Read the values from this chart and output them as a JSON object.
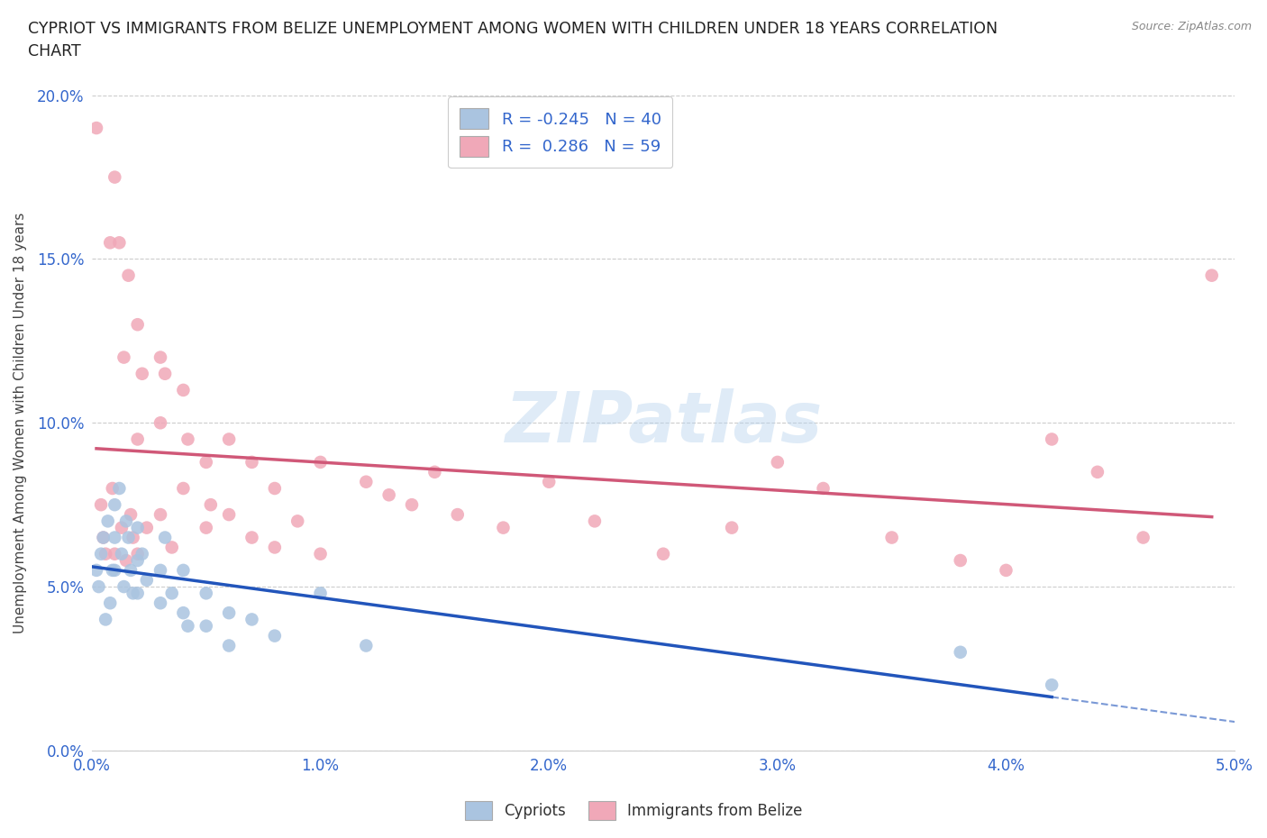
{
  "title": "CYPRIOT VS IMMIGRANTS FROM BELIZE UNEMPLOYMENT AMONG WOMEN WITH CHILDREN UNDER 18 YEARS CORRELATION\nCHART",
  "source": "Source: ZipAtlas.com",
  "ylabel": "Unemployment Among Women with Children Under 18 years",
  "xlim": [
    0.0,
    0.05
  ],
  "ylim": [
    0.0,
    0.2
  ],
  "xticks": [
    0.0,
    0.01,
    0.02,
    0.03,
    0.04,
    0.05
  ],
  "yticks": [
    0.0,
    0.05,
    0.1,
    0.15,
    0.2
  ],
  "xtick_labels": [
    "0.0%",
    "1.0%",
    "2.0%",
    "3.0%",
    "4.0%",
    "5.0%"
  ],
  "ytick_labels": [
    "0.0%",
    "5.0%",
    "10.0%",
    "15.0%",
    "20.0%"
  ],
  "background_color": "#ffffff",
  "grid_color": "#cccccc",
  "watermark": "ZIPatlas",
  "cypriot_color": "#aac4e0",
  "belize_color": "#f0a8b8",
  "cypriot_line_color": "#2255bb",
  "belize_line_color": "#d05878",
  "cypriot_R": -0.245,
  "cypriot_N": 40,
  "belize_R": 0.286,
  "belize_N": 59,
  "legend_label_cypriot": "Cypriots",
  "legend_label_belize": "Immigrants from Belize",
  "cypriot_x": [
    0.0002,
    0.0003,
    0.0004,
    0.0005,
    0.0006,
    0.0007,
    0.0008,
    0.0009,
    0.001,
    0.001,
    0.001,
    0.0012,
    0.0013,
    0.0014,
    0.0015,
    0.0016,
    0.0017,
    0.0018,
    0.002,
    0.002,
    0.002,
    0.0022,
    0.0024,
    0.003,
    0.003,
    0.0032,
    0.0035,
    0.004,
    0.004,
    0.0042,
    0.005,
    0.005,
    0.006,
    0.006,
    0.007,
    0.008,
    0.01,
    0.012,
    0.038,
    0.042
  ],
  "cypriot_y": [
    0.055,
    0.05,
    0.06,
    0.065,
    0.04,
    0.07,
    0.045,
    0.055,
    0.075,
    0.065,
    0.055,
    0.08,
    0.06,
    0.05,
    0.07,
    0.065,
    0.055,
    0.048,
    0.068,
    0.058,
    0.048,
    0.06,
    0.052,
    0.055,
    0.045,
    0.065,
    0.048,
    0.055,
    0.042,
    0.038,
    0.048,
    0.038,
    0.042,
    0.032,
    0.04,
    0.035,
    0.048,
    0.032,
    0.03,
    0.02
  ],
  "belize_x": [
    0.0002,
    0.0004,
    0.0005,
    0.0006,
    0.0008,
    0.0009,
    0.001,
    0.001,
    0.0012,
    0.0013,
    0.0014,
    0.0015,
    0.0016,
    0.0017,
    0.0018,
    0.002,
    0.002,
    0.002,
    0.0022,
    0.0024,
    0.003,
    0.003,
    0.003,
    0.0032,
    0.0035,
    0.004,
    0.004,
    0.0042,
    0.005,
    0.005,
    0.0052,
    0.006,
    0.006,
    0.007,
    0.007,
    0.008,
    0.008,
    0.009,
    0.01,
    0.01,
    0.012,
    0.013,
    0.014,
    0.015,
    0.016,
    0.018,
    0.02,
    0.022,
    0.025,
    0.028,
    0.03,
    0.032,
    0.035,
    0.038,
    0.04,
    0.042,
    0.044,
    0.046,
    0.049
  ],
  "belize_y": [
    0.19,
    0.075,
    0.065,
    0.06,
    0.155,
    0.08,
    0.175,
    0.06,
    0.155,
    0.068,
    0.12,
    0.058,
    0.145,
    0.072,
    0.065,
    0.13,
    0.095,
    0.06,
    0.115,
    0.068,
    0.12,
    0.1,
    0.072,
    0.115,
    0.062,
    0.11,
    0.08,
    0.095,
    0.088,
    0.068,
    0.075,
    0.095,
    0.072,
    0.088,
    0.065,
    0.08,
    0.062,
    0.07,
    0.088,
    0.06,
    0.082,
    0.078,
    0.075,
    0.085,
    0.072,
    0.068,
    0.082,
    0.07,
    0.06,
    0.068,
    0.088,
    0.08,
    0.065,
    0.058,
    0.055,
    0.095,
    0.085,
    0.065,
    0.145
  ]
}
